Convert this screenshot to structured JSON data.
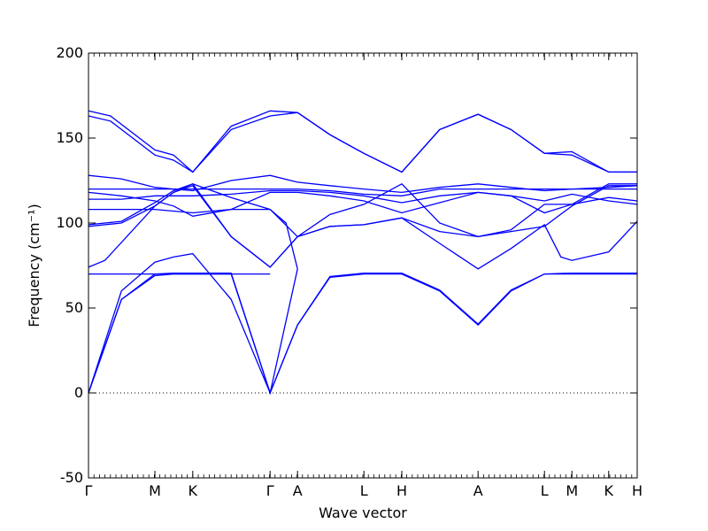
{
  "chart_data": {
    "type": "line",
    "xlabel": "Wave vector",
    "ylabel": "Frequency (cm⁻¹)",
    "ylim": [
      -50,
      200
    ],
    "yticks": [
      -50,
      0,
      50,
      100,
      150,
      200
    ],
    "xticks": [
      {
        "label": "Γ",
        "x": 0.0
      },
      {
        "label": "M",
        "x": 0.121
      },
      {
        "label": "K",
        "x": 0.19
      },
      {
        "label": "Γ",
        "x": 0.331
      },
      {
        "label": "A",
        "x": 0.381
      },
      {
        "label": "L",
        "x": 0.502
      },
      {
        "label": "H",
        "x": 0.571
      },
      {
        "label": "A",
        "x": 0.71
      },
      {
        "label": "L",
        "x": 0.831
      },
      {
        "label": "M",
        "x": 0.881
      },
      {
        "label": "K",
        "x": 0.948
      },
      {
        "label": "H",
        "x": 1.0
      }
    ],
    "zero_line": true,
    "line_color": "#0000ff",
    "series": [
      {
        "x": [
          0,
          0.06,
          0.121,
          0.155,
          0.19,
          0.26,
          0.331,
          0.381,
          0.44,
          0.502,
          0.571,
          0.64,
          0.71,
          0.77,
          0.831,
          0.881,
          0.948,
          1.0
        ],
        "y": [
          0,
          55,
          69,
          70,
          70,
          70,
          0,
          40,
          68,
          70,
          70,
          60,
          40,
          60,
          70,
          70,
          70,
          70
        ]
      },
      {
        "x": [
          0,
          0.06,
          0.121,
          0.155,
          0.19,
          0.26,
          0.331,
          0.381,
          0.44,
          0.502,
          0.571,
          0.64,
          0.71,
          0.77,
          0.831,
          0.881,
          0.948,
          1.0
        ],
        "y": [
          0,
          55,
          70,
          70.5,
          70.5,
          70.5,
          0,
          40,
          68.5,
          70.5,
          70.5,
          60.5,
          40.5,
          60.5,
          70,
          70.5,
          70.5,
          70.5
        ]
      },
      {
        "x": [
          0,
          0.121,
          0.19,
          0.331
        ],
        "y": [
          70,
          70,
          70,
          70
        ]
      },
      {
        "x": [
          0,
          0.06,
          0.121,
          0.155,
          0.19,
          0.26,
          0.331,
          0.381
        ],
        "y": [
          0,
          60,
          77,
          80,
          82,
          55,
          0,
          73
        ]
      },
      {
        "x": [
          0,
          0.03,
          0.121,
          0.155,
          0.19,
          0.26,
          0.331,
          0.381,
          0.44,
          0.502,
          0.571,
          0.64,
          0.71,
          0.77,
          0.831,
          0.861,
          0.881,
          0.948,
          1.0
        ],
        "y": [
          74,
          78,
          110,
          118,
          123,
          92,
          74,
          92,
          98,
          99,
          103,
          88,
          73,
          85,
          99,
          80,
          78,
          83,
          101
        ]
      },
      {
        "x": [
          0,
          0.06,
          0.121,
          0.155,
          0.19,
          0.26,
          0.331,
          0.381,
          0.44,
          0.502,
          0.571,
          0.64,
          0.71,
          0.77,
          0.831,
          0.881,
          0.948,
          1.0
        ],
        "y": [
          98,
          100,
          110,
          118,
          122,
          92,
          74,
          92,
          98,
          99,
          103,
          95,
          92,
          95,
          98,
          110,
          122,
          122
        ]
      },
      {
        "x": [
          0,
          0.06,
          0.121,
          0.155,
          0.19,
          0.26,
          0.331,
          0.381,
          0.44,
          0.502,
          0.571,
          0.64,
          0.71,
          0.77,
          0.831,
          0.881,
          0.948,
          1.0
        ],
        "y": [
          99,
          101,
          112,
          119,
          123,
          115,
          108,
          92,
          105,
          111,
          123,
          100,
          92,
          96,
          111,
          111,
          123,
          123
        ]
      },
      {
        "x": [
          0,
          0.121,
          0.19,
          0.26,
          0.331,
          0.36,
          0.381
        ],
        "y": [
          108,
          108,
          106,
          108,
          108,
          100,
          73
        ]
      },
      {
        "x": [
          0,
          0.06,
          0.121,
          0.155,
          0.19,
          0.26,
          0.331,
          0.381,
          0.44,
          0.502,
          0.571,
          0.64,
          0.71,
          0.77,
          0.831,
          0.881,
          0.948,
          1.0
        ],
        "y": [
          118,
          116,
          113,
          110,
          104,
          108,
          118,
          118,
          116,
          113,
          106,
          112,
          118,
          116,
          106,
          111,
          115,
          113
        ]
      },
      {
        "x": [
          0,
          0.06,
          0.121,
          0.19,
          0.26,
          0.331,
          0.381,
          0.44,
          0.502,
          0.571,
          0.64,
          0.71,
          0.77,
          0.831,
          0.881,
          0.948,
          1.0
        ],
        "y": [
          114,
          114,
          116,
          116,
          117,
          119,
          119,
          118,
          116,
          112,
          116,
          118,
          116,
          113,
          117,
          113,
          111
        ]
      },
      {
        "x": [
          0,
          0.121,
          0.19,
          0.26,
          0.331,
          0.381,
          0.44,
          0.502,
          0.571,
          0.64,
          0.71,
          0.77,
          0.831,
          0.881,
          0.948,
          1.0
        ],
        "y": [
          120,
          120,
          120,
          120,
          120,
          120,
          119,
          117,
          116,
          120,
          120,
          120,
          120,
          120,
          120,
          120
        ]
      },
      {
        "x": [
          0,
          0.06,
          0.121,
          0.155,
          0.19,
          0.26,
          0.331,
          0.381,
          0.44,
          0.502,
          0.571,
          0.64,
          0.71,
          0.77,
          0.831,
          0.881,
          0.948,
          1.0
        ],
        "y": [
          128,
          126,
          121,
          120,
          119,
          125,
          128,
          124,
          122,
          120,
          118,
          121,
          123,
          121,
          119,
          120,
          121,
          122
        ]
      },
      {
        "x": [
          0,
          0.04,
          0.121,
          0.155,
          0.19,
          0.26,
          0.331,
          0.381,
          0.44,
          0.502,
          0.571,
          0.64,
          0.71,
          0.77,
          0.831,
          0.881,
          0.948,
          1.0
        ],
        "y": [
          166,
          163,
          143,
          140,
          130,
          157,
          166,
          165,
          152,
          141,
          130,
          155,
          164,
          155,
          141,
          142,
          130,
          130
        ]
      },
      {
        "x": [
          0,
          0.04,
          0.121,
          0.155,
          0.19,
          0.26,
          0.331,
          0.381,
          0.44,
          0.502,
          0.571,
          0.64,
          0.71,
          0.77,
          0.831,
          0.881,
          0.948,
          1.0
        ],
        "y": [
          163,
          160,
          140,
          137,
          130,
          155,
          163,
          165,
          152,
          141,
          130,
          155,
          164,
          155,
          141,
          140,
          130,
          130
        ]
      }
    ]
  }
}
